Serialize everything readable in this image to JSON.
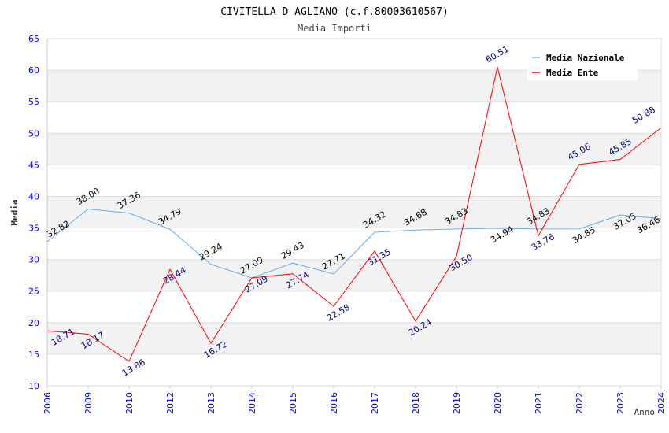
{
  "chart_data": {
    "type": "line",
    "title": "CIVITELLA D AGLIANO (c.f.80003610567)",
    "subtitle": "Media Importi",
    "xlabel": "Anno",
    "ylabel": "Media",
    "ylim": [
      10,
      65
    ],
    "yticks": [
      "10",
      "15",
      "20",
      "25",
      "30",
      "35",
      "40",
      "45",
      "50",
      "55",
      "60",
      "65"
    ],
    "categories": [
      "2006",
      "2009",
      "2010",
      "2012",
      "2013",
      "2014",
      "2015",
      "2016",
      "2017",
      "2018",
      "2019",
      "2020",
      "2021",
      "2022",
      "2023",
      "2024"
    ],
    "legend_position": "top-right",
    "series": [
      {
        "name": "Media Nazionale",
        "color": "#66aaee",
        "label_color": "#000000",
        "values": [
          32.82,
          38.0,
          37.36,
          34.79,
          29.24,
          27.09,
          29.43,
          27.71,
          34.32,
          34.68,
          34.83,
          34.94,
          34.83,
          34.85,
          37.05,
          36.46
        ]
      },
      {
        "name": "Media Ente",
        "color": "#ff0000",
        "label_color": "#000080",
        "values": [
          18.71,
          18.17,
          13.86,
          28.44,
          16.72,
          27.09,
          27.74,
          22.58,
          31.35,
          20.24,
          30.5,
          60.51,
          33.76,
          45.06,
          45.85,
          50.88
        ]
      }
    ]
  }
}
